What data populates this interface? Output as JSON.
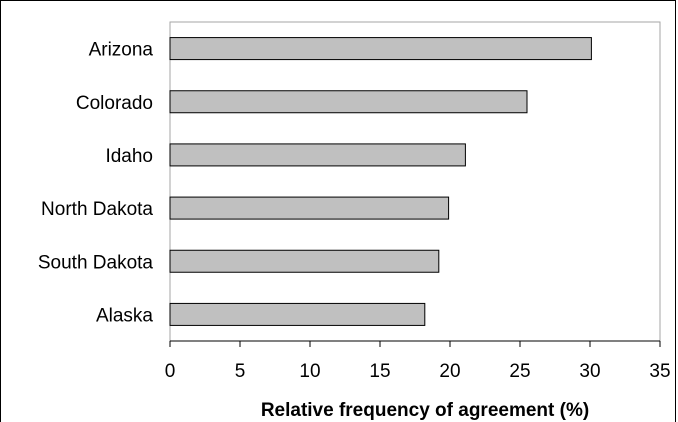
{
  "chart_data": {
    "type": "bar",
    "orientation": "horizontal",
    "title": "",
    "xlabel": "Relative frequency of agreement (%)",
    "ylabel": "",
    "categories": [
      "Arizona",
      "Colorado",
      "Idaho",
      "North Dakota",
      "South Dakota",
      "Alaska"
    ],
    "values": [
      30.1,
      25.5,
      21.1,
      19.9,
      19.2,
      18.2
    ],
    "xlim": [
      0,
      35
    ],
    "xticks": [
      0,
      5,
      10,
      15,
      20,
      25,
      30,
      35
    ],
    "grid": false,
    "legend": "none",
    "colors": {
      "bar_fill": "#c0c0c0",
      "bar_stroke": "#000000",
      "plot_border": "#a6a6a6"
    }
  }
}
